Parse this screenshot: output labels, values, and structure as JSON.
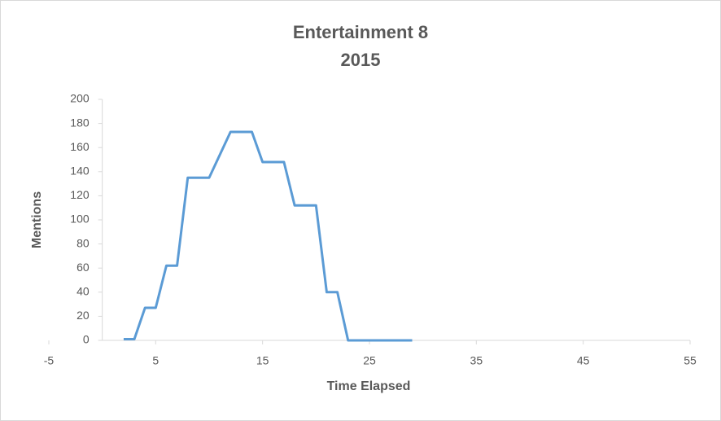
{
  "chart_data": {
    "type": "line",
    "title": "Entertainment 8",
    "subtitle": "2015",
    "x_label": "Time Elapsed",
    "y_label": "Mentions",
    "x": [
      2,
      3,
      4,
      5,
      6,
      7,
      8,
      9,
      10,
      11,
      12,
      13,
      14,
      15,
      16,
      17,
      18,
      19,
      20,
      21,
      22,
      23,
      24,
      25,
      26,
      27,
      28,
      29
    ],
    "series": [
      {
        "name": "Mentions",
        "color": "#5b9bd5",
        "values": [
          1,
          1,
          27,
          27,
          62,
          62,
          135,
          135,
          135,
          154,
          173,
          173,
          173,
          148,
          148,
          148,
          112,
          112,
          112,
          40,
          40,
          0,
          0,
          0,
          0,
          0,
          0,
          0
        ]
      }
    ],
    "xlim": [
      -5,
      55
    ],
    "xticks": [
      -5,
      5,
      15,
      25,
      35,
      45,
      55
    ],
    "ylim": [
      0,
      200
    ],
    "yticks": [
      0,
      20,
      40,
      60,
      80,
      100,
      120,
      140,
      160,
      180,
      200
    ],
    "grid": false
  }
}
